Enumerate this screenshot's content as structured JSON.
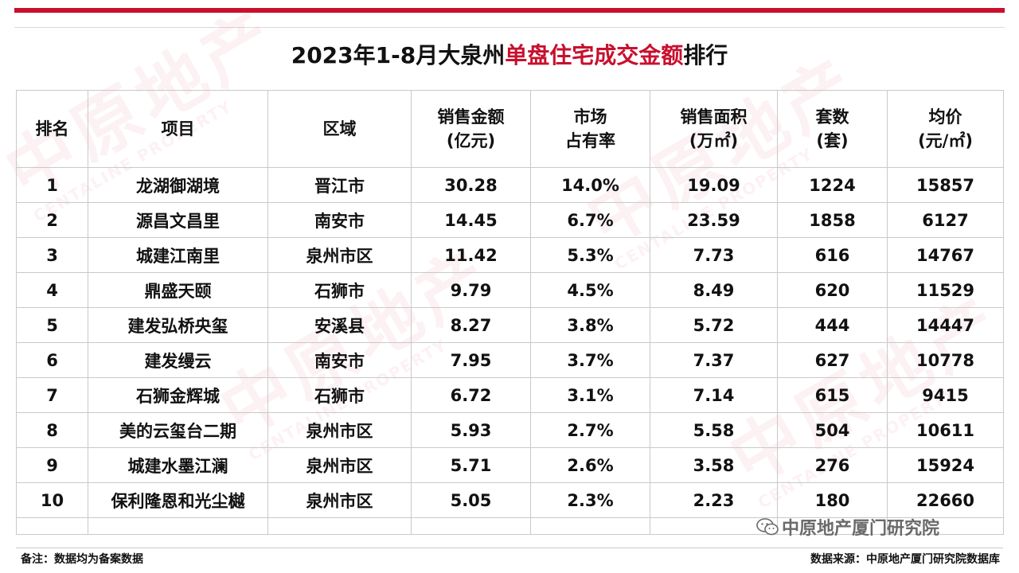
{
  "title": {
    "prefix": "2023年1-8月大泉州",
    "highlight": "单盘住宅成交金额",
    "suffix": "排行"
  },
  "colors": {
    "accent": "#c8102e",
    "border": "#c9c9c9"
  },
  "watermark": {
    "cn": "中原地产",
    "en": "CENTALINE PROPERTY"
  },
  "columns": [
    {
      "l1": "排名",
      "l2": ""
    },
    {
      "l1": "项目",
      "l2": ""
    },
    {
      "l1": "区域",
      "l2": ""
    },
    {
      "l1": "销售金额",
      "l2": "(亿元)"
    },
    {
      "l1": "市场",
      "l2": "占有率"
    },
    {
      "l1": "销售面积",
      "l2": "(万㎡)"
    },
    {
      "l1": "套数",
      "l2": "(套)"
    },
    {
      "l1": "均价",
      "l2": "(元/㎡)"
    }
  ],
  "rows": [
    [
      "1",
      "龙湖御湖境",
      "晋江市",
      "30.28",
      "14.0%",
      "19.09",
      "1224",
      "15857"
    ],
    [
      "2",
      "源昌文昌里",
      "南安市",
      "14.45",
      "6.7%",
      "23.59",
      "1858",
      "6127"
    ],
    [
      "3",
      "城建江南里",
      "泉州市区",
      "11.42",
      "5.3%",
      "7.73",
      "616",
      "14767"
    ],
    [
      "4",
      "鼎盛天颐",
      "石狮市",
      "9.79",
      "4.5%",
      "8.49",
      "620",
      "11529"
    ],
    [
      "5",
      "建发弘桥央玺",
      "安溪县",
      "8.27",
      "3.8%",
      "5.72",
      "444",
      "14447"
    ],
    [
      "6",
      "建发缦云",
      "南安市",
      "7.95",
      "3.7%",
      "7.37",
      "627",
      "10778"
    ],
    [
      "7",
      "石狮金辉城",
      "石狮市",
      "6.72",
      "3.1%",
      "7.14",
      "615",
      "9415"
    ],
    [
      "8",
      "美的云玺台二期",
      "泉州市区",
      "5.93",
      "2.7%",
      "5.58",
      "504",
      "10611"
    ],
    [
      "9",
      "城建水墨江澜",
      "泉州市区",
      "5.71",
      "2.6%",
      "3.58",
      "276",
      "15924"
    ],
    [
      "10",
      "保利隆恩和光尘樾",
      "泉州市区",
      "5.05",
      "2.3%",
      "2.23",
      "180",
      "22660"
    ]
  ],
  "footer": {
    "note": "备注：数据均为备案数据",
    "source": "数据来源：中原地产厦门研究院数据库"
  },
  "brand": {
    "label": "中原地产厦门研究院",
    "icon": "wechat-icon"
  }
}
